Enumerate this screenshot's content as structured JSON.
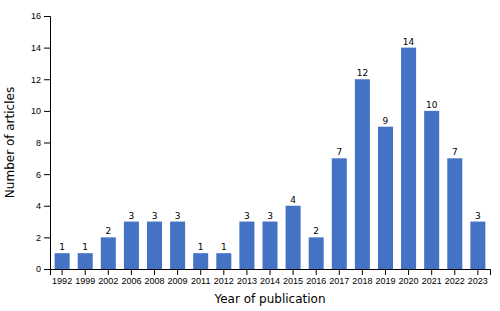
{
  "chart_data": {
    "type": "bar",
    "categories": [
      "1992",
      "1999",
      "2002",
      "2006",
      "2008",
      "2009",
      "2011",
      "2012",
      "2013",
      "2014",
      "2015",
      "2016",
      "2017",
      "2018",
      "2019",
      "2020",
      "2021",
      "2022",
      "2023"
    ],
    "values": [
      1,
      1,
      2,
      3,
      3,
      3,
      1,
      1,
      3,
      3,
      4,
      2,
      7,
      12,
      9,
      14,
      10,
      7,
      3
    ],
    "color": "#4472C4",
    "xlabel": "Year of publication",
    "ylabel": "Number of articles",
    "ylim": [
      0,
      16
    ],
    "yticks": [
      0,
      2,
      4,
      6,
      8,
      10,
      12,
      14,
      16
    ],
    "grid": false,
    "data_labels": true
  }
}
